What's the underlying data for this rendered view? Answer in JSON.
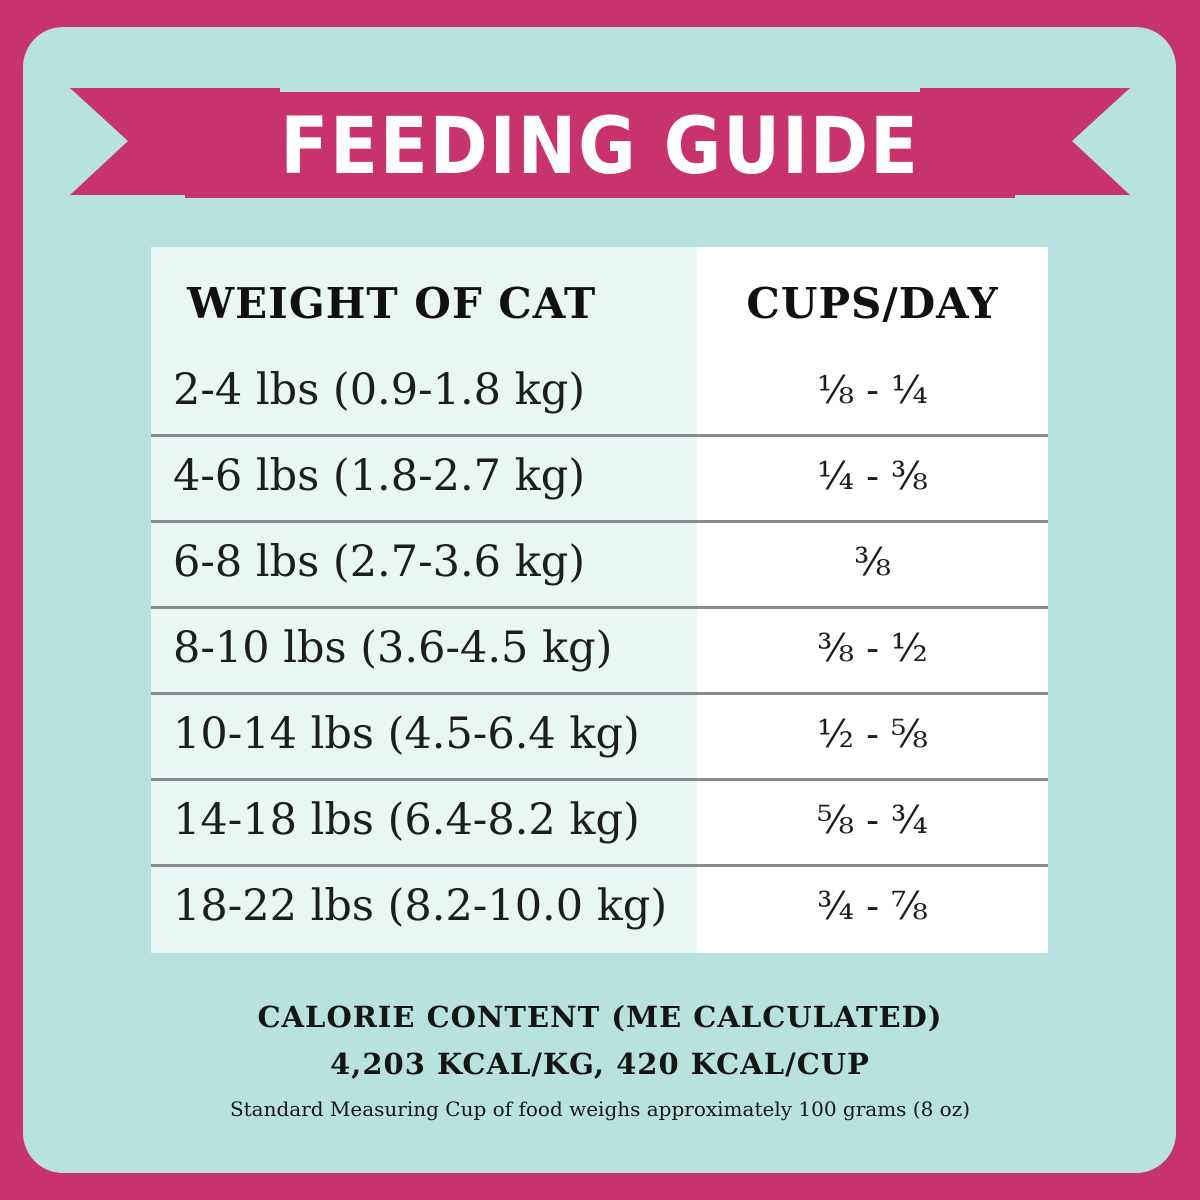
{
  "colors": {
    "border": "#c8336e",
    "panel": "#b7e2dd",
    "banner": "#c8336e",
    "table_left_column": "#eaf6f4",
    "table_right_column": "#ffffff",
    "row_divider": "#8a8a8e"
  },
  "banner": {
    "title": "FEEDING GUIDE"
  },
  "table": {
    "headers": {
      "weight": "WEIGHT OF CAT",
      "cups": "CUPS/DAY"
    },
    "rows": [
      {
        "weight": "2-4 lbs (0.9-1.8 kg)",
        "cups": "⅛ - ¼"
      },
      {
        "weight": "4-6 lbs (1.8-2.7 kg)",
        "cups": "¼ - ⅜"
      },
      {
        "weight": "6-8 lbs (2.7-3.6 kg)",
        "cups": "⅜"
      },
      {
        "weight": "8-10 lbs (3.6-4.5 kg)",
        "cups": "⅜ - ½"
      },
      {
        "weight": "10-14 lbs (4.5-6.4 kg)",
        "cups": "½ - ⅝"
      },
      {
        "weight": "14-18 lbs (6.4-8.2 kg)",
        "cups": "⅝ - ¾"
      },
      {
        "weight": "18-22 lbs (8.2-10.0 kg)",
        "cups": "¾ - ⅞"
      }
    ]
  },
  "footer": {
    "calorie_title": "CALORIE CONTENT (ME CALCULATED)",
    "calorie_values": "4,203 KCAL/KG, 420 KCAL/CUP",
    "note": "Standard Measuring Cup of food weighs approximately 100 grams (8 oz)"
  }
}
